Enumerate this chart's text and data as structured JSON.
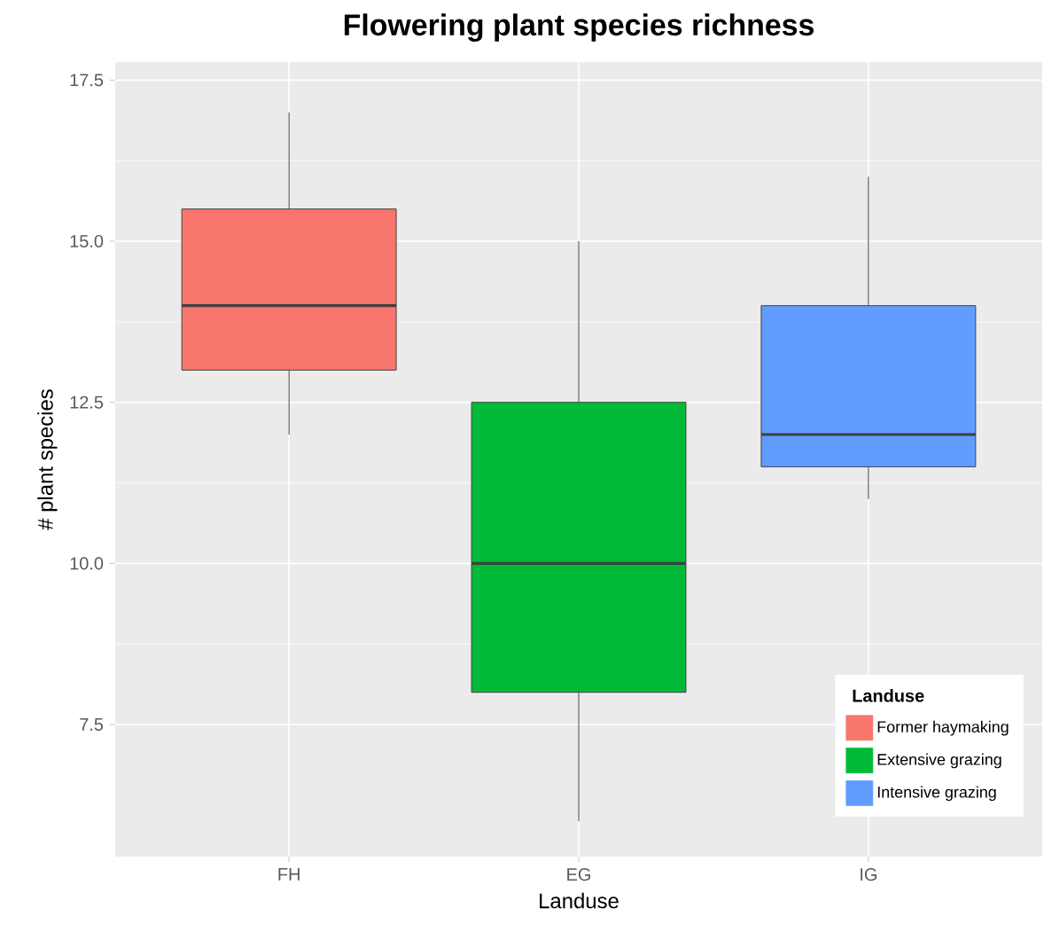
{
  "chart_data": {
    "type": "box",
    "title": "Flowering plant species richness",
    "xlabel": "Landuse",
    "ylabel": "# plant species",
    "legend_title": "Landuse",
    "categories": [
      "FH",
      "EG",
      "IG"
    ],
    "series": [
      {
        "name": "Former haymaking",
        "color": "#f8766d",
        "boxes": [
          {
            "low": 12,
            "q1": 13,
            "median": 14,
            "q3": 15.5,
            "high": 17
          },
          null,
          null
        ]
      },
      {
        "name": "Extensive grazing",
        "color": "#00ba38",
        "boxes": [
          null,
          {
            "low": 6,
            "q1": 8,
            "median": 10,
            "q3": 12.5,
            "high": 15
          },
          null
        ]
      },
      {
        "name": "Intensive grazing",
        "color": "#619cff",
        "boxes": [
          null,
          null,
          {
            "low": 11,
            "q1": 11.5,
            "median": 12,
            "q3": 14,
            "high": 16
          }
        ]
      }
    ],
    "ylim": [
      5.45,
      17.78
    ],
    "yticks": [
      7.5,
      {
        "value": 10,
        "label": "10.0"
      },
      12.5,
      {
        "value": 15,
        "label": "15.0"
      },
      17.5
    ],
    "grid": true,
    "legend": "bottom right"
  }
}
